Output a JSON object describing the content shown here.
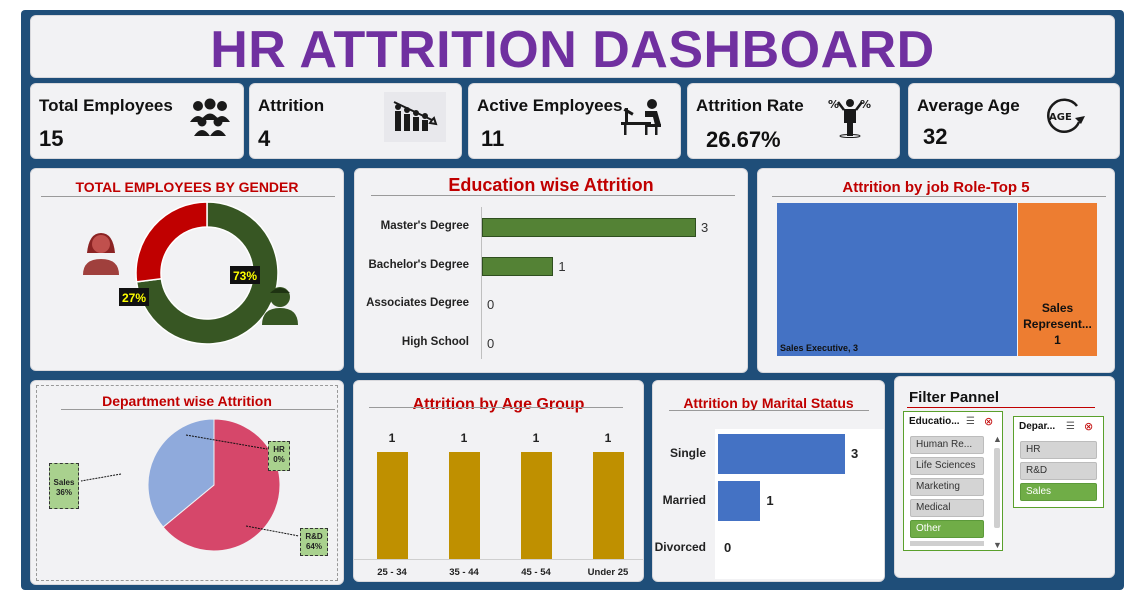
{
  "title": "HR ATTRITION DASHBOARD",
  "kpis": [
    {
      "label": "Total Employees",
      "value": "15",
      "icon": "group-icon"
    },
    {
      "label": "Attrition",
      "value": "4",
      "icon": "declining-people-icon"
    },
    {
      "label": "Active Employees",
      "value": "11",
      "icon": "desk-worker-icon"
    },
    {
      "label": "Attrition Rate",
      "value": "26.67%",
      "icon": "percent-person-icon"
    },
    {
      "label": "Average Age",
      "value": "32",
      "icon": "age-cycle-icon"
    }
  ],
  "gender": {
    "title": "TOTAL EMPLOYEES BY GENDER",
    "female_pct": "27%",
    "male_pct": "73%",
    "female_value": 27,
    "male_value": 73,
    "female_color": "#c00000",
    "male_color": "#375623"
  },
  "education": {
    "title": "Education wise Attrition",
    "bar_color": "#548235",
    "max": 3,
    "items": [
      {
        "label": "Master's Degree",
        "value": 3,
        "text": "3"
      },
      {
        "label": "Bachelor's Degree",
        "value": 1,
        "text": "1"
      },
      {
        "label": "Associates Degree",
        "value": 0,
        "text": "0"
      },
      {
        "label": "High School",
        "value": 0,
        "text": "0"
      }
    ]
  },
  "job_role": {
    "title": "Attrition by job Role-Top 5",
    "items": [
      {
        "label": "Sales Executive, 3",
        "value": 3,
        "color": "#4472c4"
      },
      {
        "label": "Sales Represent...",
        "value_text": "1",
        "value": 1,
        "color": "#ed7d31"
      }
    ]
  },
  "department": {
    "title": "Department wise Attrition",
    "slices": [
      {
        "name": "R&D",
        "pct": 64,
        "label": "R&D",
        "pct_text": "64%",
        "color": "#d6476a"
      },
      {
        "name": "Sales",
        "pct": 36,
        "label": "Sales",
        "pct_text": "36%",
        "color": "#8faadc"
      },
      {
        "name": "HR",
        "pct": 0,
        "label": "HR",
        "pct_text": "0%",
        "color": "#a9d18e"
      }
    ]
  },
  "age_group": {
    "title": "Attrition by Age Group",
    "bar_color": "#bf9000",
    "max": 1,
    "items": [
      {
        "label": "25 - 34",
        "value": 1,
        "text": "1"
      },
      {
        "label": "35 - 44",
        "value": 1,
        "text": "1"
      },
      {
        "label": "45 - 54",
        "value": 1,
        "text": "1"
      },
      {
        "label": "Under 25",
        "value": 1,
        "text": "1"
      }
    ]
  },
  "marital": {
    "title": "Attrition by Marital Status",
    "bar_color": "#4472c4",
    "max": 3,
    "items": [
      {
        "label": "Single",
        "value": 3,
        "text": "3"
      },
      {
        "label": "Married",
        "value": 1,
        "text": "1"
      },
      {
        "label": "Divorced",
        "value": 0,
        "text": "0"
      }
    ]
  },
  "filter": {
    "title": "Filter Pannel",
    "education_slicer": {
      "header": "Educatio...",
      "items": [
        {
          "label": "Human Re...",
          "selected": false
        },
        {
          "label": "Life Sciences",
          "selected": false
        },
        {
          "label": "Marketing",
          "selected": false
        },
        {
          "label": "Medical",
          "selected": false
        },
        {
          "label": "Other",
          "selected": true
        }
      ]
    },
    "department_slicer": {
      "header": "Depar...",
      "items": [
        {
          "label": "HR",
          "selected": false
        },
        {
          "label": "R&D",
          "selected": false
        },
        {
          "label": "Sales",
          "selected": true
        }
      ]
    }
  },
  "chart_data": [
    {
      "type": "pie",
      "title": "TOTAL EMPLOYEES BY GENDER",
      "categories": [
        "Female",
        "Male"
      ],
      "values": [
        27,
        73
      ]
    },
    {
      "type": "bar",
      "title": "Education wise Attrition",
      "categories": [
        "Master's Degree",
        "Bachelor's Degree",
        "Associates Degree",
        "High School"
      ],
      "values": [
        3,
        1,
        0,
        0
      ]
    },
    {
      "type": "bar",
      "title": "Attrition by Age Group",
      "categories": [
        "25 - 34",
        "35 - 44",
        "45 - 54",
        "Under 25"
      ],
      "values": [
        1,
        1,
        1,
        1
      ]
    },
    {
      "type": "bar",
      "title": "Attrition by Marital Status",
      "categories": [
        "Single",
        "Married",
        "Divorced"
      ],
      "values": [
        3,
        1,
        0
      ]
    },
    {
      "type": "pie",
      "title": "Department wise Attrition",
      "categories": [
        "R&D",
        "Sales",
        "HR"
      ],
      "values": [
        64,
        36,
        0
      ]
    }
  ]
}
